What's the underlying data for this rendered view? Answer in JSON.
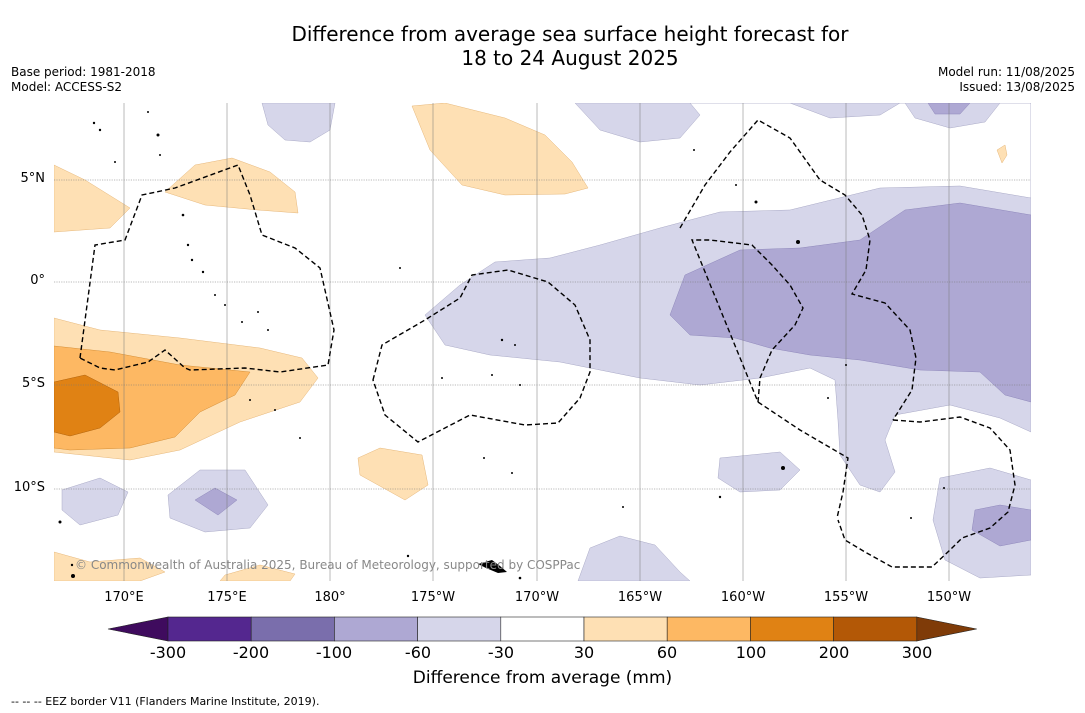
{
  "title_line1": "Difference from average sea surface height forecast for",
  "title_line2": "18 to 24 August 2025",
  "base_period": "Base period: 1981-2018",
  "model": "Model: ACCESS-S2",
  "model_run": "Model run: 11/08/2025",
  "issued": "Issued: 13/08/2025",
  "lon_labels": [
    "170°E",
    "175°E",
    "180°",
    "175°W",
    "170°W",
    "165°W",
    "160°W",
    "155°W",
    "150°W"
  ],
  "lat_labels": [
    "5°N",
    "0°",
    "5°S",
    "10°S"
  ],
  "copyright": "© Commonwealth of Australia 2025, Bureau of Meteorology, supported by COSPPac",
  "colorbar": {
    "title": "Difference from average (mm)",
    "ticks": [
      "-300",
      "-200",
      "-100",
      "-60",
      "-30",
      "30",
      "60",
      "100",
      "200",
      "300"
    ],
    "colors": [
      "#3f0b5e",
      "#54278f",
      "#7a6eac",
      "#aea8d3",
      "#d6d6ea",
      "#ffffff",
      "#fee0b4",
      "#fdb863",
      "#e08214",
      "#b35806",
      "#7f3b08"
    ]
  },
  "footer": "-- -- -- EEZ border V11 (Flanders Marine Institute, 2019)."
}
